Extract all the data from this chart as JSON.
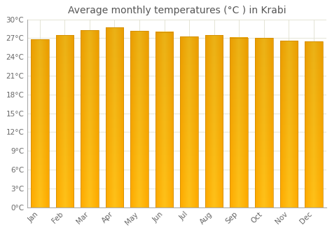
{
  "months": [
    "Jan",
    "Feb",
    "Mar",
    "Apr",
    "May",
    "Jun",
    "Jul",
    "Aug",
    "Sep",
    "Oct",
    "Nov",
    "Dec"
  ],
  "values": [
    26.8,
    27.5,
    28.3,
    28.7,
    28.2,
    28.0,
    27.3,
    27.5,
    27.1,
    27.0,
    26.6,
    26.5
  ],
  "bar_color": "#FFAA00",
  "bar_color_light": "#FFD060",
  "bar_edge_color": "#CC8800",
  "title": "Average monthly temperatures (°C ) in Krabi",
  "ylim": [
    0,
    30
  ],
  "yticks": [
    0,
    3,
    6,
    9,
    12,
    15,
    18,
    21,
    24,
    27,
    30
  ],
  "ytick_labels": [
    "0°C",
    "3°C",
    "6°C",
    "9°C",
    "12°C",
    "15°C",
    "18°C",
    "21°C",
    "24°C",
    "27°C",
    "30°C"
  ],
  "background_color": "#FFFFFF",
  "grid_color": "#E0E0D0",
  "title_fontsize": 10,
  "tick_fontsize": 7.5,
  "title_color": "#555555",
  "tick_color": "#666666"
}
